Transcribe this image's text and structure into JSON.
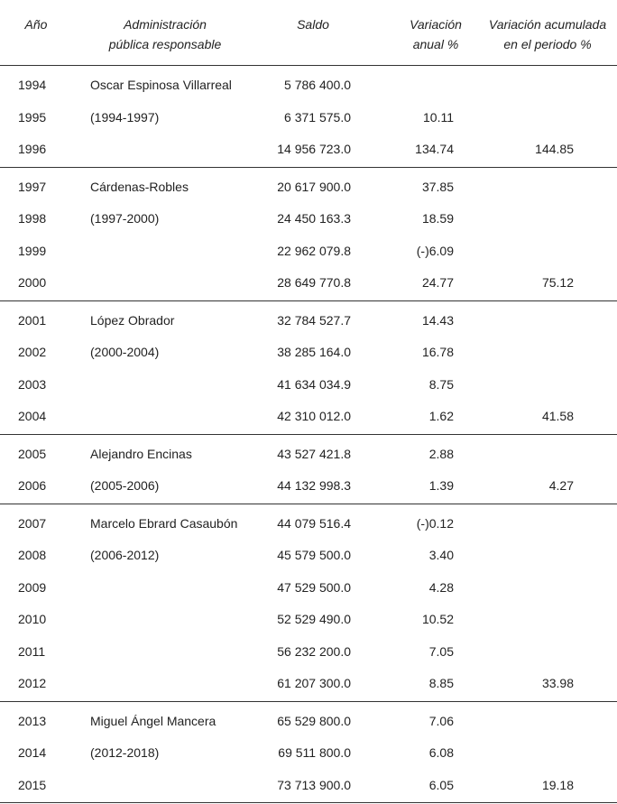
{
  "header": [
    [
      "Año"
    ],
    [
      "Administración",
      "pública responsable"
    ],
    [
      "Saldo"
    ],
    [
      "Variación",
      "anual %"
    ],
    [
      "Variación acumulada",
      "en el periodo %"
    ]
  ],
  "groups": [
    {
      "admin": "Oscar Espinosa Villarreal",
      "period": "(1994-1997)",
      "rows": [
        [
          "1994",
          "5 786 400.0",
          null,
          null
        ],
        [
          "1995",
          "6 371 575.0",
          "10.11",
          null
        ],
        [
          "1996",
          "14 956 723.0",
          "134.74",
          "144.85"
        ]
      ]
    },
    {
      "admin": "Cárdenas-Robles",
      "period": "(1997-2000)",
      "rows": [
        [
          "1997",
          "20 617 900.0",
          "37.85",
          null
        ],
        [
          "1998",
          "24 450 163.3",
          "18.59",
          null
        ],
        [
          "1999",
          "22 962 079.8",
          "(-)6.09",
          null
        ],
        [
          "2000",
          "28 649 770.8",
          "24.77",
          "75.12"
        ]
      ]
    },
    {
      "admin": "López Obrador",
      "period": "(2000-2004)",
      "rows": [
        [
          "2001",
          "32 784 527.7",
          "14.43",
          null
        ],
        [
          "2002",
          "38 285 164.0",
          "16.78",
          null
        ],
        [
          "2003",
          "41 634 034.9",
          "8.75",
          null
        ],
        [
          "2004",
          "42 310 012.0",
          "1.62",
          "41.58"
        ]
      ]
    },
    {
      "admin": "Alejandro Encinas",
      "period": "(2005-2006)",
      "rows": [
        [
          "2005",
          "43 527 421.8",
          "2.88",
          null
        ],
        [
          "2006",
          "44 132 998.3",
          "1.39",
          "4.27"
        ]
      ]
    },
    {
      "admin": "Marcelo Ebrard Casaubón",
      "period": "(2006-2012)",
      "rows": [
        [
          "2007",
          "44 079 516.4",
          "(-)0.12",
          null
        ],
        [
          "2008",
          "45 579 500.0",
          "3.40",
          null
        ],
        [
          "2009",
          "47 529 500.0",
          "4.28",
          null
        ],
        [
          "2010",
          "52 529 490.0",
          "10.52",
          null
        ],
        [
          "2011",
          "56 232 200.0",
          "7.05",
          null
        ],
        [
          "2012",
          "61 207 300.0",
          "8.85",
          "33.98"
        ]
      ]
    },
    {
      "admin": "Miguel Ángel Mancera",
      "period": "(2012-2018)",
      "rows": [
        [
          "2013",
          "65 529 800.0",
          "7.06",
          null
        ],
        [
          "2014",
          "69 511 800.0",
          "6.08",
          null
        ],
        [
          "2015",
          "73 713 900.0",
          "6.05",
          "19.18"
        ]
      ]
    }
  ]
}
